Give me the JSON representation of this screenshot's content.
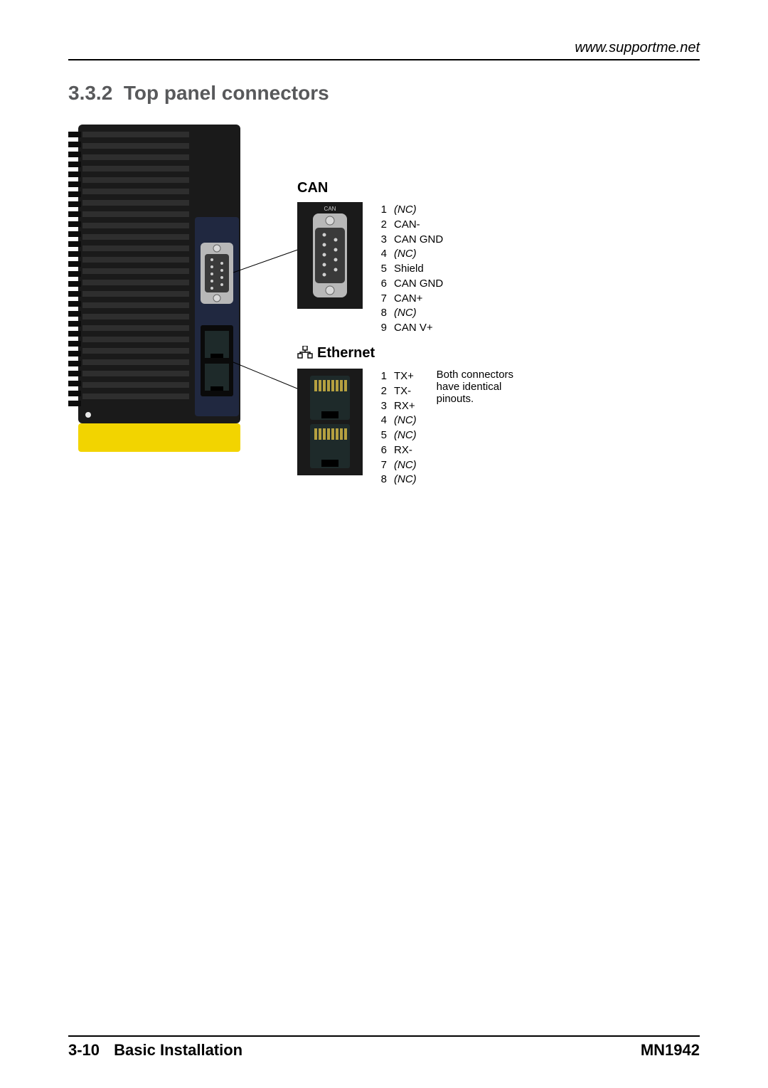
{
  "header": {
    "url": "www.supportme.net"
  },
  "section": {
    "number": "3.3.2",
    "title": "Top panel connectors"
  },
  "connectors": {
    "can": {
      "title": "CAN",
      "pins": [
        {
          "n": "1",
          "label": "(NC)",
          "nc": true
        },
        {
          "n": "2",
          "label": "CAN-",
          "nc": false
        },
        {
          "n": "3",
          "label": "CAN GND",
          "nc": false
        },
        {
          "n": "4",
          "label": "(NC)",
          "nc": true
        },
        {
          "n": "5",
          "label": "Shield",
          "nc": false
        },
        {
          "n": "6",
          "label": "CAN GND",
          "nc": false
        },
        {
          "n": "7",
          "label": "CAN+",
          "nc": false
        },
        {
          "n": "8",
          "label": "(NC)",
          "nc": true
        },
        {
          "n": "9",
          "label": "CAN V+",
          "nc": false
        }
      ]
    },
    "ethernet": {
      "title": "Ethernet",
      "note": "Both connectors have identical pinouts.",
      "pins": [
        {
          "n": "1",
          "label": "TX+",
          "nc": false
        },
        {
          "n": "2",
          "label": "TX-",
          "nc": false
        },
        {
          "n": "3",
          "label": "RX+",
          "nc": false
        },
        {
          "n": "4",
          "label": "(NC)",
          "nc": true
        },
        {
          "n": "5",
          "label": "(NC)",
          "nc": true
        },
        {
          "n": "6",
          "label": "RX-",
          "nc": false
        },
        {
          "n": "7",
          "label": "(NC)",
          "nc": true
        },
        {
          "n": "8",
          "label": "(NC)",
          "nc": true
        }
      ]
    }
  },
  "footer": {
    "page": "3-10",
    "chapter": "Basic Installation",
    "doc": "MN1942"
  },
  "style": {
    "heading_color": "#58595b",
    "hw_body": "#1a1a1a",
    "hw_body_light": "#2e2e2e",
    "hw_fins": "#0c0c0c",
    "hw_metal": "#8a8a8a",
    "hw_yellow": "#f2d400",
    "hw_face": "#202840",
    "db9_shell": "#b8b8b8",
    "db9_pin": "#cfcfcf",
    "rj45_body": "#0a0a0a",
    "rj45_slot": "#1e2a2a",
    "thumb_bg": "#1a1a1a"
  }
}
